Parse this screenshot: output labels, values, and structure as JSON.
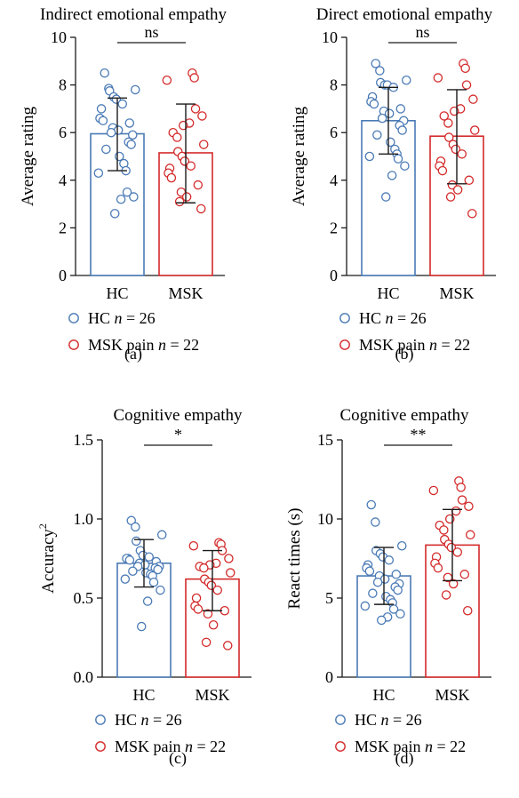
{
  "colors": {
    "hc": "#4a7ab5",
    "msk": "#d42a2a",
    "axis": "#1a1a1a"
  },
  "legend": {
    "hc": {
      "label": "HC",
      "n_prefix": "n",
      "n_value": " = 26"
    },
    "msk": {
      "label": "MSK pain",
      "n_prefix": "n",
      "n_value": " = 22"
    }
  },
  "chart_data": [
    {
      "type": "bar",
      "panel": "(a)",
      "title": "Indirect emotional empathy",
      "ylabel": "Average rating",
      "ylabel_sup": "",
      "ylim": [
        0,
        10
      ],
      "yticks": [
        "0",
        "2",
        "4",
        "6",
        "8",
        "10"
      ],
      "yticks_values": [
        0,
        2,
        4,
        6,
        8,
        10
      ],
      "categories": [
        "HC",
        "MSK"
      ],
      "significance": "ns",
      "series": [
        {
          "name": "HC",
          "mean": 5.95,
          "sd_low": 4.4,
          "sd_high": 7.45,
          "points": [
            8.5,
            7.85,
            7.8,
            7.75,
            7.5,
            7.4,
            7.2,
            7.0,
            6.6,
            6.5,
            6.4,
            6.2,
            6.1,
            6.0,
            5.9,
            5.6,
            5.5,
            5.3,
            5.0,
            4.7,
            4.4,
            4.3,
            3.5,
            3.3,
            3.2,
            2.6
          ]
        },
        {
          "name": "MSK",
          "mean": 5.15,
          "sd_low": 3.05,
          "sd_high": 7.2,
          "points": [
            8.5,
            8.3,
            8.2,
            7.0,
            6.7,
            6.4,
            6.3,
            6.0,
            5.8,
            5.5,
            5.2,
            5.0,
            4.8,
            4.6,
            4.5,
            4.3,
            4.1,
            3.8,
            3.5,
            3.3,
            3.1,
            2.8
          ]
        }
      ]
    },
    {
      "type": "bar",
      "panel": "(b)",
      "title": "Direct emotional empathy",
      "ylabel": "Average rating",
      "ylabel_sup": "",
      "ylim": [
        0,
        10
      ],
      "yticks": [
        "0",
        "2",
        "4",
        "6",
        "8",
        "10"
      ],
      "yticks_values": [
        0,
        2,
        4,
        6,
        8,
        10
      ],
      "categories": [
        "HC",
        "MSK"
      ],
      "significance": "ns",
      "series": [
        {
          "name": "HC",
          "mean": 6.5,
          "sd_low": 5.1,
          "sd_high": 7.9,
          "points": [
            8.9,
            8.6,
            8.2,
            8.1,
            8.0,
            8.0,
            7.9,
            7.5,
            7.3,
            7.2,
            7.0,
            6.9,
            6.8,
            6.6,
            6.5,
            6.3,
            6.1,
            5.9,
            5.6,
            5.3,
            5.1,
            5.0,
            4.9,
            4.6,
            4.2,
            3.3
          ]
        },
        {
          "name": "MSK",
          "mean": 5.85,
          "sd_low": 3.85,
          "sd_high": 7.8,
          "points": [
            8.9,
            8.7,
            8.3,
            8.0,
            7.4,
            7.0,
            6.9,
            6.7,
            6.4,
            6.1,
            5.8,
            5.5,
            5.3,
            5.1,
            4.8,
            4.6,
            4.4,
            4.0,
            3.8,
            3.6,
            3.3,
            2.6
          ]
        }
      ]
    },
    {
      "type": "bar",
      "panel": "(c)",
      "title": "Cognitive empathy",
      "ylabel": "Accuracy",
      "ylabel_sup": "2",
      "ylim": [
        0,
        1.5
      ],
      "yticks": [
        "0.0",
        "0.5",
        "1.0",
        "1.5"
      ],
      "yticks_values": [
        0,
        0.5,
        1.0,
        1.5
      ],
      "categories": [
        "HC",
        "MSK"
      ],
      "significance": "*",
      "series": [
        {
          "name": "HC",
          "mean": 0.72,
          "sd_low": 0.57,
          "sd_high": 0.87,
          "points": [
            0.99,
            0.95,
            0.9,
            0.86,
            0.8,
            0.77,
            0.76,
            0.75,
            0.75,
            0.74,
            0.73,
            0.72,
            0.71,
            0.7,
            0.7,
            0.69,
            0.68,
            0.67,
            0.66,
            0.65,
            0.64,
            0.62,
            0.6,
            0.55,
            0.48,
            0.32
          ]
        },
        {
          "name": "MSK",
          "mean": 0.62,
          "sd_low": 0.42,
          "sd_high": 0.8,
          "points": [
            0.85,
            0.84,
            0.83,
            0.8,
            0.75,
            0.72,
            0.71,
            0.7,
            0.69,
            0.66,
            0.62,
            0.6,
            0.58,
            0.55,
            0.5,
            0.45,
            0.43,
            0.42,
            0.4,
            0.33,
            0.22,
            0.2
          ]
        }
      ]
    },
    {
      "type": "bar",
      "panel": "(d)",
      "title": "Cognitive empathy",
      "ylabel": "React times (s)",
      "ylabel_sup": "",
      "ylim": [
        0,
        15
      ],
      "yticks": [
        "0",
        "5",
        "10",
        "15"
      ],
      "yticks_values": [
        0,
        5,
        10,
        15
      ],
      "categories": [
        "HC",
        "MSK"
      ],
      "significance": "**",
      "series": [
        {
          "name": "HC",
          "mean": 6.4,
          "sd_low": 4.6,
          "sd_high": 8.2,
          "points": [
            10.9,
            9.8,
            8.3,
            8.0,
            7.8,
            7.6,
            7.4,
            7.1,
            6.9,
            6.7,
            6.5,
            6.4,
            6.2,
            6.0,
            5.9,
            5.7,
            5.5,
            5.3,
            5.1,
            4.9,
            4.7,
            4.5,
            4.3,
            4.0,
            3.8,
            3.6
          ]
        },
        {
          "name": "MSK",
          "mean": 8.35,
          "sd_low": 6.1,
          "sd_high": 10.6,
          "points": [
            12.4,
            12.0,
            11.8,
            11.2,
            10.8,
            10.5,
            10.0,
            9.6,
            9.3,
            9.0,
            8.7,
            8.4,
            8.2,
            7.9,
            7.6,
            7.2,
            6.9,
            6.5,
            6.3,
            5.9,
            5.2,
            4.2
          ]
        }
      ]
    }
  ]
}
